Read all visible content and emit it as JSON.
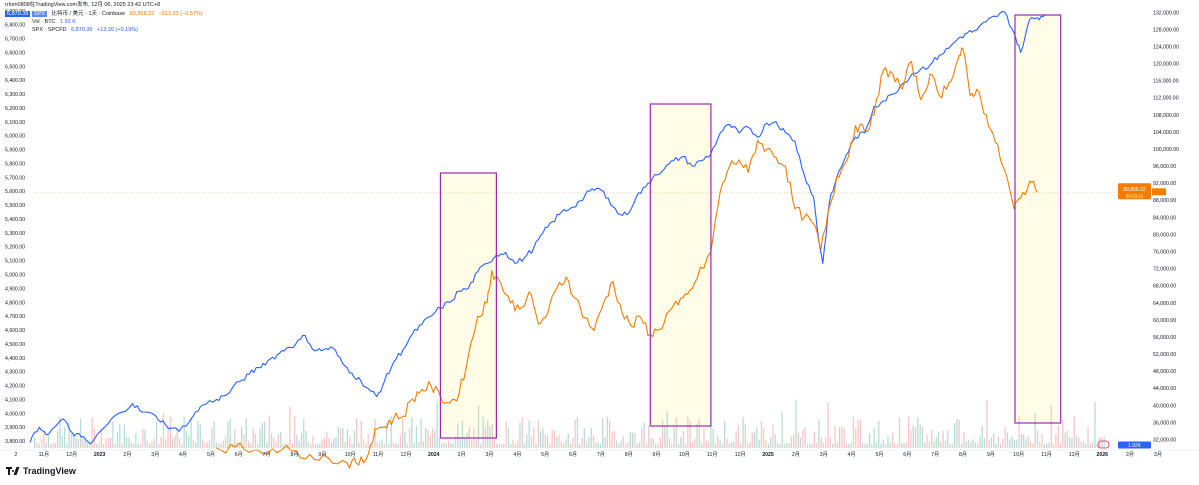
{
  "header": {
    "line1": "rrlom0808在TradingView.com发布, 12月 06, 2025 23:42 UTC+8",
    "line2_label": "比特币 / 美元 · 1天 · Coinbase",
    "line2_value": "89,858.32",
    "line2_change": "−513.03 (−0.57%)",
    "line3_label": "Vol · BTC",
    "line3_value": "1.92 K",
    "line4_label": "SPX · SPCFD",
    "line4_value": "6,870.39",
    "line4_change": "+13.26 (+0.19%)",
    "badge_spx_left": "6,870.39",
    "badge_spx_tag": "SPX"
  },
  "brand": "TradingView",
  "colors": {
    "spx": "#2962ff",
    "btc": "#f57c00",
    "box": "#9c27b0",
    "box_fill": "#fffde7",
    "vol_up": "#b8dcd5",
    "vol_down": "#f7c7c7"
  },
  "chart_data": {
    "type": "line",
    "x_ticks": [
      "2",
      "11月",
      "12月",
      "2023",
      "2月",
      "3月",
      "4月",
      "5月",
      "6月",
      "7月",
      "8月",
      "9月",
      "10月",
      "11月",
      "12月",
      "2024",
      "2月",
      "3月",
      "4月",
      "5月",
      "6月",
      "7月",
      "8月",
      "9月",
      "10月",
      "11月",
      "12月",
      "2025",
      "2月",
      "3月",
      "4月",
      "5月",
      "6月",
      "7月",
      "8月",
      "9月",
      "10月",
      "11月",
      "12月",
      "2026",
      "2月",
      "3月"
    ],
    "y_left_ticks": [
      "6,900.00",
      "6,800.00",
      "6,700.00",
      "6,600.00",
      "6,500.00",
      "6,400.00",
      "6,300.00",
      "6,200.00",
      "6,100.00",
      "6,000.00",
      "5,900.00",
      "5,800.00",
      "5,700.00",
      "5,600.00",
      "5,500.00",
      "5,400.00",
      "5,300.00",
      "5,200.00",
      "5,100.00",
      "5,000.00",
      "4,900.00",
      "4,800.00",
      "4,700.00",
      "4,600.00",
      "4,500.00",
      "4,400.00",
      "4,300.00",
      "4,200.00",
      "4,100.00",
      "4,000.00",
      "3,900.00",
      "3,800.00"
    ],
    "y_right_ticks": [
      "132,000.00",
      "128,000.00",
      "124,000.00",
      "120,000.00",
      "116,000.00",
      "112,000.00",
      "108,000.00",
      "104,000.00",
      "100,000.00",
      "96,000.00",
      "92,000.00",
      "88,000.00",
      "84,000.00",
      "80,000.00",
      "76,000.00",
      "72,000.00",
      "68,000.00",
      "64,000.00",
      "60,000.00",
      "56,000.00",
      "52,000.00",
      "48,000.00",
      "44,000.00",
      "40,000.00",
      "36,000.00",
      "32,000.00"
    ],
    "y_left_range": [
      3750,
      6920
    ],
    "y_right_range": [
      30000,
      133000
    ],
    "x_range_days": [
      0,
      1220
    ],
    "series": [
      {
        "name": "SPX",
        "axis": "left",
        "points": [
          [
            0,
            3790
          ],
          [
            10,
            3900
          ],
          [
            20,
            3850
          ],
          [
            35,
            3960
          ],
          [
            45,
            3860
          ],
          [
            55,
            3830
          ],
          [
            65,
            3780
          ],
          [
            80,
            3900
          ],
          [
            95,
            4000
          ],
          [
            110,
            4070
          ],
          [
            120,
            4010
          ],
          [
            135,
            3980
          ],
          [
            145,
            3920
          ],
          [
            160,
            3870
          ],
          [
            175,
            3980
          ],
          [
            185,
            4060
          ],
          [
            200,
            4100
          ],
          [
            210,
            4130
          ],
          [
            225,
            4230
          ],
          [
            235,
            4280
          ],
          [
            245,
            4330
          ],
          [
            255,
            4380
          ],
          [
            265,
            4420
          ],
          [
            275,
            4470
          ],
          [
            285,
            4500
          ],
          [
            295,
            4560
          ],
          [
            305,
            4450
          ],
          [
            315,
            4460
          ],
          [
            325,
            4470
          ],
          [
            335,
            4360
          ],
          [
            345,
            4290
          ],
          [
            355,
            4230
          ],
          [
            365,
            4160
          ],
          [
            372,
            4120
          ],
          [
            380,
            4230
          ],
          [
            390,
            4370
          ],
          [
            400,
            4460
          ],
          [
            410,
            4570
          ],
          [
            420,
            4640
          ],
          [
            430,
            4700
          ],
          [
            440,
            4760
          ],
          [
            450,
            4800
          ],
          [
            460,
            4880
          ],
          [
            470,
            4900
          ],
          [
            480,
            5020
          ],
          [
            490,
            5080
          ],
          [
            500,
            5140
          ],
          [
            510,
            5160
          ],
          [
            520,
            5080
          ],
          [
            530,
            5120
          ],
          [
            540,
            5190
          ],
          [
            550,
            5300
          ],
          [
            560,
            5380
          ],
          [
            570,
            5450
          ],
          [
            580,
            5480
          ],
          [
            590,
            5530
          ],
          [
            600,
            5600
          ],
          [
            610,
            5620
          ],
          [
            620,
            5550
          ],
          [
            630,
            5440
          ],
          [
            640,
            5430
          ],
          [
            650,
            5560
          ],
          [
            660,
            5630
          ],
          [
            670,
            5720
          ],
          [
            680,
            5760
          ],
          [
            690,
            5820
          ],
          [
            700,
            5850
          ],
          [
            710,
            5780
          ],
          [
            720,
            5820
          ],
          [
            730,
            5870
          ],
          [
            740,
            6020
          ],
          [
            750,
            6080
          ],
          [
            760,
            6020
          ],
          [
            770,
            6060
          ],
          [
            780,
            5990
          ],
          [
            790,
            6090
          ],
          [
            800,
            6100
          ],
          [
            810,
            6020
          ],
          [
            820,
            5960
          ],
          [
            830,
            5720
          ],
          [
            840,
            5560
          ],
          [
            845,
            5280
          ],
          [
            850,
            5080
          ],
          [
            857,
            5520
          ],
          [
            865,
            5700
          ],
          [
            875,
            5860
          ],
          [
            885,
            5990
          ],
          [
            895,
            6020
          ],
          [
            905,
            6210
          ],
          [
            915,
            6250
          ],
          [
            925,
            6300
          ],
          [
            935,
            6370
          ],
          [
            945,
            6440
          ],
          [
            955,
            6480
          ],
          [
            965,
            6510
          ],
          [
            975,
            6580
          ],
          [
            985,
            6630
          ],
          [
            995,
            6700
          ],
          [
            1005,
            6740
          ],
          [
            1015,
            6760
          ],
          [
            1025,
            6820
          ],
          [
            1035,
            6860
          ],
          [
            1045,
            6890
          ],
          [
            1055,
            6740
          ],
          [
            1062,
            6600
          ],
          [
            1072,
            6840
          ],
          [
            1080,
            6850
          ],
          [
            1088,
            6870
          ]
        ]
      },
      {
        "name": "BTC",
        "axis": "right",
        "points": [
          [
            200,
            30000
          ],
          [
            220,
            30200
          ],
          [
            240,
            29500
          ],
          [
            260,
            29800
          ],
          [
            280,
            29300
          ],
          [
            300,
            28500
          ],
          [
            320,
            27600
          ],
          [
            340,
            26500
          ],
          [
            350,
            26400
          ],
          [
            360,
            27200
          ],
          [
            370,
            34500
          ],
          [
            380,
            35000
          ],
          [
            390,
            37000
          ],
          [
            400,
            37500
          ],
          [
            410,
            41500
          ],
          [
            420,
            43700
          ],
          [
            430,
            44500
          ],
          [
            440,
            42000
          ],
          [
            450,
            40500
          ],
          [
            460,
            42700
          ],
          [
            470,
            51600
          ],
          [
            480,
            60800
          ],
          [
            490,
            64000
          ],
          [
            495,
            71500
          ],
          [
            505,
            68500
          ],
          [
            515,
            64000
          ],
          [
            525,
            62500
          ],
          [
            535,
            66500
          ],
          [
            545,
            59000
          ],
          [
            555,
            61500
          ],
          [
            565,
            67500
          ],
          [
            575,
            70000
          ],
          [
            585,
            65000
          ],
          [
            595,
            60500
          ],
          [
            605,
            57500
          ],
          [
            615,
            64000
          ],
          [
            625,
            69000
          ],
          [
            635,
            61500
          ],
          [
            645,
            58500
          ],
          [
            655,
            60500
          ],
          [
            665,
            56500
          ],
          [
            675,
            57800
          ],
          [
            685,
            62000
          ],
          [
            695,
            63500
          ],
          [
            705,
            66000
          ],
          [
            715,
            69500
          ],
          [
            730,
            76000
          ],
          [
            740,
            90000
          ],
          [
            750,
            96000
          ],
          [
            760,
            97500
          ],
          [
            770,
            94500
          ],
          [
            780,
            102000
          ],
          [
            790,
            100000
          ],
          [
            800,
            98000
          ],
          [
            810,
            96000
          ],
          [
            820,
            86000
          ],
          [
            830,
            84000
          ],
          [
            840,
            82500
          ],
          [
            848,
            76500
          ],
          [
            855,
            84500
          ],
          [
            865,
            93500
          ],
          [
            875,
            97000
          ],
          [
            885,
            105500
          ],
          [
            895,
            104000
          ],
          [
            905,
            108000
          ],
          [
            915,
            118500
          ],
          [
            925,
            117500
          ],
          [
            935,
            114000
          ],
          [
            945,
            120500
          ],
          [
            955,
            111500
          ],
          [
            965,
            117500
          ],
          [
            975,
            112500
          ],
          [
            985,
            115500
          ],
          [
            995,
            121000
          ],
          [
            1000,
            123500
          ],
          [
            1008,
            112500
          ],
          [
            1015,
            114000
          ],
          [
            1025,
            108000
          ],
          [
            1035,
            101500
          ],
          [
            1045,
            95000
          ],
          [
            1055,
            86000
          ],
          [
            1062,
            88500
          ],
          [
            1072,
            92500
          ],
          [
            1080,
            89858
          ]
        ]
      }
    ],
    "boxes": [
      {
        "from_day": 440,
        "to_day": 500
      },
      {
        "from_day": 665,
        "to_day": 730
      },
      {
        "from_day": 1056,
        "to_day": 1105
      }
    ],
    "last_values": {
      "btc": "89,858.32",
      "btc_sub": "09:23:22",
      "spx_right": "6,870.39",
      "vol_right": "1.92K"
    },
    "grid": false
  }
}
